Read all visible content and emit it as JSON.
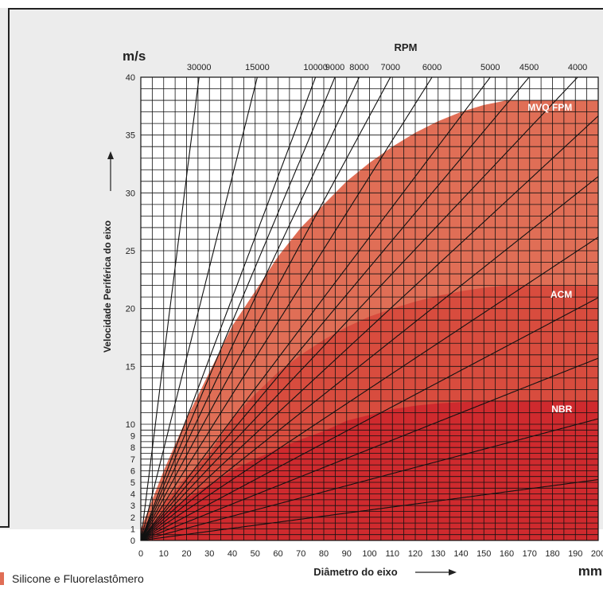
{
  "chart_data": {
    "type": "area",
    "title": "",
    "ylabel": "Velocidade Periférica do eixo",
    "yunit": "m/s",
    "xlabel": "Diâmetro do eixo",
    "xunit": "mm",
    "top_axis_label": "RPM",
    "xlim": [
      0,
      200
    ],
    "ylim": [
      0,
      40
    ],
    "y_scale_note": "non-linear below 10 m/s",
    "x_ticks": [
      "0",
      "10",
      "20",
      "30",
      "40",
      "50",
      "60",
      "70",
      "80",
      "90",
      "100",
      "110",
      "120",
      "130",
      "140",
      "150",
      "160",
      "170",
      "180",
      "190",
      "200"
    ],
    "y_ticks": [
      "0",
      "1",
      "2",
      "3",
      "4",
      "5",
      "6",
      "7",
      "8",
      "9",
      "10",
      "15",
      "20",
      "25",
      "30",
      "35",
      "40"
    ],
    "grid": true,
    "series": [
      {
        "name": "MVQ FPM",
        "color": "#e06e56",
        "x": [
          0,
          10,
          20,
          30,
          40,
          50,
          60,
          70,
          80,
          90,
          100,
          110,
          120,
          130,
          140,
          150,
          160,
          200
        ],
        "y": [
          1.0,
          6.0,
          10.5,
          14.5,
          18.5,
          21.5,
          24.5,
          27.0,
          29.0,
          31.0,
          32.6,
          34.0,
          35.2,
          36.2,
          37.0,
          37.6,
          38.0,
          38.0
        ]
      },
      {
        "name": "ACM",
        "color": "#d84c3e",
        "x": [
          0,
          10,
          20,
          30,
          40,
          50,
          60,
          70,
          80,
          90,
          100,
          110,
          120,
          130,
          140,
          150,
          160,
          200
        ],
        "y": [
          1.0,
          3.2,
          5.5,
          7.5,
          10.5,
          12.6,
          14.5,
          16.0,
          17.3,
          18.4,
          19.3,
          20.0,
          20.6,
          21.1,
          21.5,
          21.8,
          22.0,
          22.0
        ]
      },
      {
        "name": "NBR",
        "color": "#cf2a2e",
        "x": [
          3,
          3,
          10,
          20,
          30,
          40,
          50,
          60,
          70,
          80,
          90,
          100,
          110,
          120,
          130,
          140,
          150,
          200
        ],
        "y": [
          0,
          1.0,
          2.3,
          3.6,
          4.8,
          6.0,
          7.0,
          7.9,
          8.7,
          9.4,
          10.3,
          10.8,
          11.3,
          11.6,
          11.8,
          11.9,
          12.0,
          12.0
        ]
      }
    ],
    "rpm_lines": [
      {
        "label": "30000",
        "rpm": 30000
      },
      {
        "label": "15000",
        "rpm": 15000
      },
      {
        "label": "10000",
        "rpm": 10000
      },
      {
        "label": "9000",
        "rpm": 9000
      },
      {
        "label": "8000",
        "rpm": 8000
      },
      {
        "label": "7000",
        "rpm": 7000
      },
      {
        "label": "6000",
        "rpm": 6000
      },
      {
        "label": "5000",
        "rpm": 5000
      },
      {
        "label": "4500",
        "rpm": 4500
      },
      {
        "label": "4000",
        "rpm": 4000
      },
      {
        "label": "",
        "rpm": 3500
      },
      {
        "label": "",
        "rpm": 3000
      },
      {
        "label": "",
        "rpm": 2500
      },
      {
        "label": "",
        "rpm": 2000
      },
      {
        "label": "",
        "rpm": 1500
      },
      {
        "label": "",
        "rpm": 1000
      },
      {
        "label": "",
        "rpm": 500
      }
    ]
  },
  "legend": {
    "label": "Silicone e Fluorelastômero",
    "color": "#e06e56"
  }
}
